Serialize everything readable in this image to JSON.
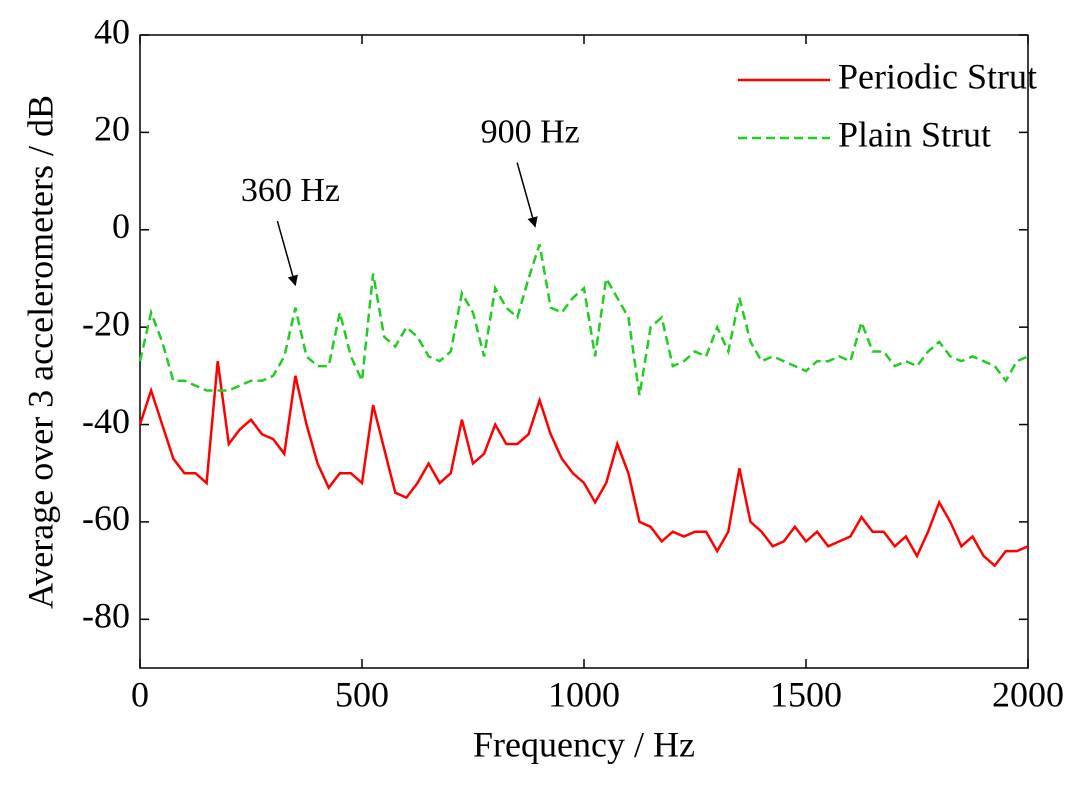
{
  "chart_data": {
    "type": "line",
    "xlabel": "Frequency / Hz",
    "ylabel": "Average over 3 accelerometers / dB",
    "x": [
      0,
      25,
      50,
      75,
      100,
      125,
      150,
      175,
      200,
      225,
      250,
      275,
      300,
      325,
      350,
      375,
      400,
      425,
      450,
      475,
      500,
      525,
      550,
      575,
      600,
      625,
      650,
      675,
      700,
      725,
      750,
      775,
      800,
      825,
      850,
      875,
      900,
      925,
      950,
      975,
      1000,
      1025,
      1050,
      1075,
      1100,
      1125,
      1150,
      1175,
      1200,
      1225,
      1250,
      1275,
      1300,
      1325,
      1350,
      1375,
      1400,
      1425,
      1450,
      1475,
      1500,
      1525,
      1550,
      1575,
      1600,
      1625,
      1650,
      1675,
      1700,
      1725,
      1750,
      1775,
      1800,
      1825,
      1850,
      1875,
      1900,
      1925,
      1950,
      1975,
      2000
    ],
    "series": [
      {
        "name": "Periodic Strut",
        "color": "#ff0000",
        "dash": "solid",
        "values": [
          -40,
          -33,
          -40,
          -47,
          -50,
          -50,
          -52,
          -27,
          -44,
          -41,
          -39,
          -42,
          -43,
          -46,
          -30,
          -40,
          -48,
          -53,
          -50,
          -50,
          -52,
          -36,
          -45,
          -54,
          -55,
          -52,
          -48,
          -52,
          -50,
          -39,
          -48,
          -46,
          -40,
          -44,
          -44,
          -42,
          -35,
          -42,
          -47,
          -50,
          -52,
          -56,
          -52,
          -44,
          -50,
          -60,
          -61,
          -64,
          -62,
          -63,
          -62,
          -62,
          -66,
          -62,
          -49,
          -60,
          -62,
          -65,
          -64,
          -61,
          -64,
          -62,
          -65,
          -64,
          -63,
          -59,
          -62,
          -62,
          -65,
          -63,
          -67,
          -62,
          -56,
          -60,
          -65,
          -63,
          -67,
          -69,
          -66,
          -66,
          -65
        ]
      },
      {
        "name": "Plain Strut",
        "color": "#22cc22",
        "dash": "dashed",
        "values": [
          -27,
          -17,
          -23,
          -31,
          -31,
          -32,
          -33,
          -33,
          -33,
          -32,
          -31,
          -31,
          -30,
          -26,
          -16,
          -26,
          -28,
          -28,
          -17,
          -26,
          -31,
          -9,
          -22,
          -24,
          -20,
          -22,
          -26,
          -27,
          -25,
          -13,
          -17,
          -26,
          -12,
          -16,
          -18,
          -10,
          -3,
          -16,
          -17,
          -14,
          -12,
          -26,
          -10,
          -14,
          -18,
          -34,
          -20,
          -18,
          -28,
          -27,
          -25,
          -26,
          -20,
          -25,
          -14,
          -23,
          -27,
          -26,
          -27,
          -28,
          -29,
          -27,
          -27,
          -26,
          -27,
          -19,
          -25,
          -25,
          -28,
          -27,
          -28,
          -25,
          -23,
          -26,
          -27,
          -26,
          -27,
          -28,
          -31,
          -27,
          -26
        ]
      }
    ],
    "annotations": [
      {
        "text": "360 Hz",
        "x": 350,
        "y": -13
      },
      {
        "text": "900 Hz",
        "x": 890,
        "y": -1
      }
    ],
    "xlim": [
      0,
      2000
    ],
    "xticks": [
      0,
      500,
      1000,
      1500,
      2000
    ],
    "ylim": [
      -90,
      40
    ],
    "yticks": [
      -80,
      -60,
      -40,
      -20,
      0,
      20,
      40
    ],
    "legend": "upper right",
    "grid": false
  }
}
